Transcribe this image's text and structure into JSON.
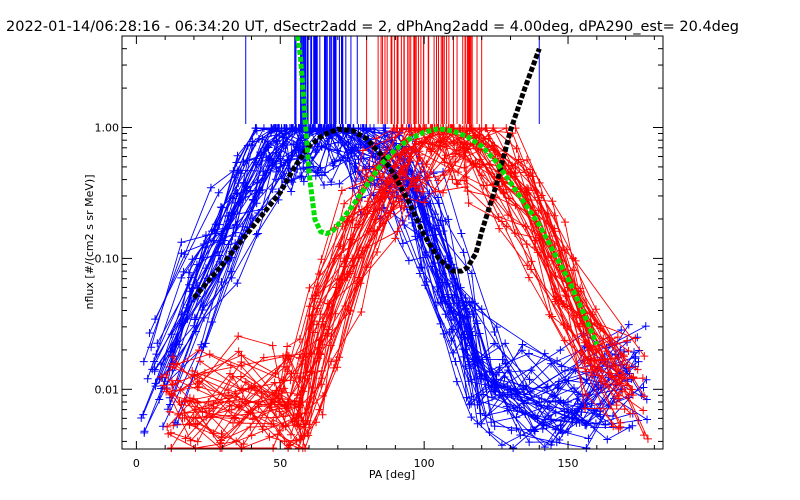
{
  "chart_data": {
    "type": "line",
    "title": "2022-01-14/06:28:16 - 06:34:20 UT, dSectr2add = 2, dPhAng2add = 4.00deg, dPA290_est=  20.4deg",
    "xlabel": "PA [deg]",
    "ylabel": "nflux [#/(cm2 s sr MeV)]",
    "xlim": [
      -5,
      183
    ],
    "ylim": [
      0.0035,
      5.0
    ],
    "yscale": "log",
    "grid": false,
    "x_ticks": [
      0,
      50,
      100,
      150
    ],
    "x_tick_labels": [
      "0",
      "50",
      "100",
      "150"
    ],
    "y_ticks": [
      0.01,
      0.1,
      1.0
    ],
    "y_tick_labels": [
      "0.01",
      "0.10",
      "1.00"
    ],
    "colors": {
      "blue_series": "#0000ff",
      "red_series": "#ff0000",
      "fit_black": "#000000",
      "fit_green": "#00e000"
    },
    "series": [
      {
        "color": "blue",
        "style": "thin lines with plus markers (many sweeps)",
        "x": [
          8,
          20,
          30,
          38,
          45,
          52,
          55,
          60,
          65,
          70,
          75,
          82,
          90,
          97,
          103,
          110,
          115,
          120,
          130,
          140,
          150,
          160,
          172
        ],
        "y": [
          0.012,
          0.05,
          0.15,
          0.35,
          0.7,
          0.9,
          0.95,
          0.95,
          0.95,
          0.95,
          0.9,
          0.7,
          0.45,
          0.3,
          0.15,
          0.05,
          0.03,
          0.012,
          0.01,
          0.008,
          0.008,
          0.01,
          0.012
        ]
      },
      {
        "color": "red",
        "style": "thin lines with plus markers (many sweeps)",
        "x": [
          15,
          25,
          38,
          50,
          55,
          60,
          65,
          75,
          85,
          95,
          102,
          108,
          115,
          120,
          130,
          140,
          150,
          160,
          172
        ],
        "y": [
          0.008,
          0.008,
          0.008,
          0.008,
          0.008,
          0.008,
          0.03,
          0.1,
          0.3,
          0.6,
          0.85,
          0.95,
          0.9,
          0.75,
          0.45,
          0.2,
          0.06,
          0.02,
          0.01
        ]
      },
      {
        "color": "black",
        "style": "thick dashed fit",
        "x": [
          20,
          30,
          40,
          50,
          55,
          60,
          65,
          70,
          75,
          80,
          85,
          90,
          95,
          100,
          105,
          110,
          113,
          115,
          118,
          120,
          125,
          130,
          135,
          140
        ],
        "y": [
          0.05,
          0.09,
          0.17,
          0.32,
          0.5,
          0.72,
          0.88,
          0.97,
          0.95,
          0.82,
          0.62,
          0.42,
          0.26,
          0.15,
          0.1,
          0.08,
          0.08,
          0.085,
          0.11,
          0.16,
          0.36,
          0.95,
          2.0,
          4.0
        ]
      },
      {
        "color": "green",
        "style": "thick dashed fit",
        "x": [
          56,
          57,
          58,
          59,
          60,
          61,
          62,
          64,
          66,
          68,
          70,
          75,
          80,
          85,
          90,
          95,
          100,
          105,
          110,
          115,
          120,
          125,
          130,
          140,
          150,
          155,
          160
        ],
        "y": [
          6.0,
          3.5,
          1.8,
          0.9,
          0.45,
          0.3,
          0.2,
          0.16,
          0.155,
          0.16,
          0.18,
          0.25,
          0.36,
          0.52,
          0.68,
          0.82,
          0.92,
          0.98,
          0.94,
          0.85,
          0.72,
          0.55,
          0.38,
          0.18,
          0.07,
          0.04,
          0.022
        ]
      }
    ],
    "rug_marks": [
      {
        "color": "blue",
        "x_range": [
          55,
          77
        ],
        "note": "vertical tick marks along top"
      },
      {
        "color": "red",
        "x_range": [
          85,
          120
        ],
        "note": "vertical tick marks along top"
      }
    ]
  }
}
